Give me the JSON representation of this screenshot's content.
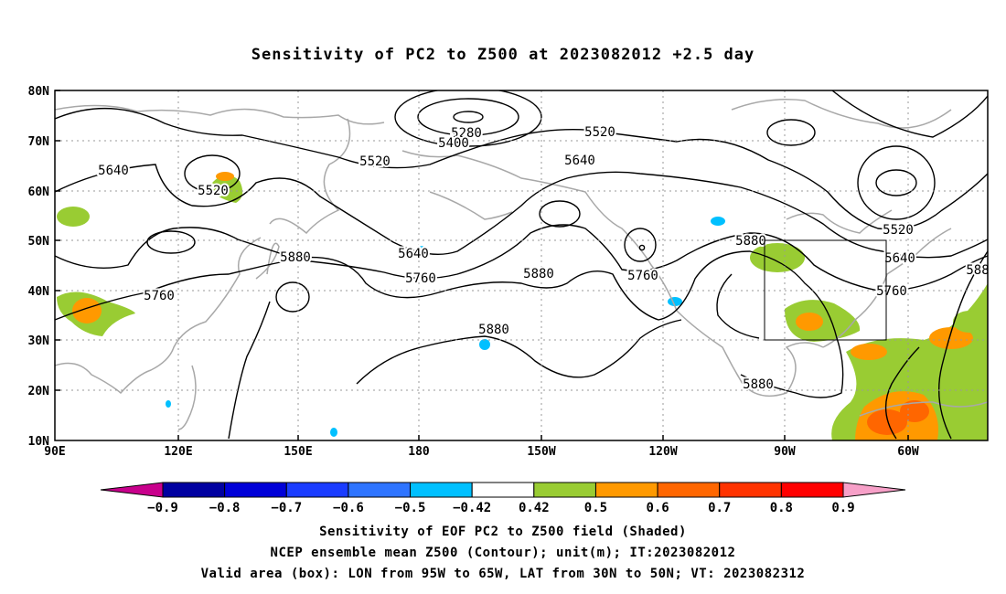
{
  "title": "Sensitivity of PC2 to Z500 at 2023082012 +2.5 day",
  "map": {
    "lat_labels": [
      "80N",
      "70N",
      "60N",
      "50N",
      "40N",
      "30N",
      "20N",
      "10N"
    ],
    "lon_labels": [
      "90E",
      "120E",
      "150E",
      "180",
      "150W",
      "120W",
      "90W",
      "60W"
    ],
    "box": {
      "label": "Valid area",
      "lon_from": "95W",
      "lon_to": "65W",
      "lat_from": "30N",
      "lat_to": "50N"
    },
    "contour_labels": [
      "5280",
      "5400",
      "5520",
      "5520",
      "5640",
      "5520",
      "5640",
      "5640",
      "5880",
      "5760",
      "5880",
      "5880",
      "5760",
      "5880",
      "5520",
      "5640",
      "5760",
      "588",
      "5880"
    ]
  },
  "colorbar": {
    "labels": [
      "−0.9",
      "−0.8",
      "−0.7",
      "−0.6",
      "−0.5",
      "−0.42",
      "0.42",
      "0.5",
      "0.6",
      "0.7",
      "0.8",
      "0.9"
    ],
    "colors": [
      "#0000a0",
      "#0000d8",
      "#1a3cff",
      "#2e74ff",
      "#00c0ff",
      "#ffffff",
      "#99cc33",
      "#ff9900",
      "#ff6600",
      "#ff3300",
      "#ff0000"
    ],
    "low_end": "#c8008c",
    "high_end": "#f7a0c8"
  },
  "captions": {
    "line1": "Sensitivity of EOF PC2 to Z500 field (Shaded)",
    "line2": "NCEP ensemble mean Z500 (Contour); unit(m); IT:2023082012",
    "line3": "Valid area (box): LON from 95W to 65W, LAT from 30N to 50N; VT: 2023082312"
  },
  "colors": {
    "coast": "#a8a8a8",
    "contour": "#000000",
    "grid": "#999999"
  }
}
